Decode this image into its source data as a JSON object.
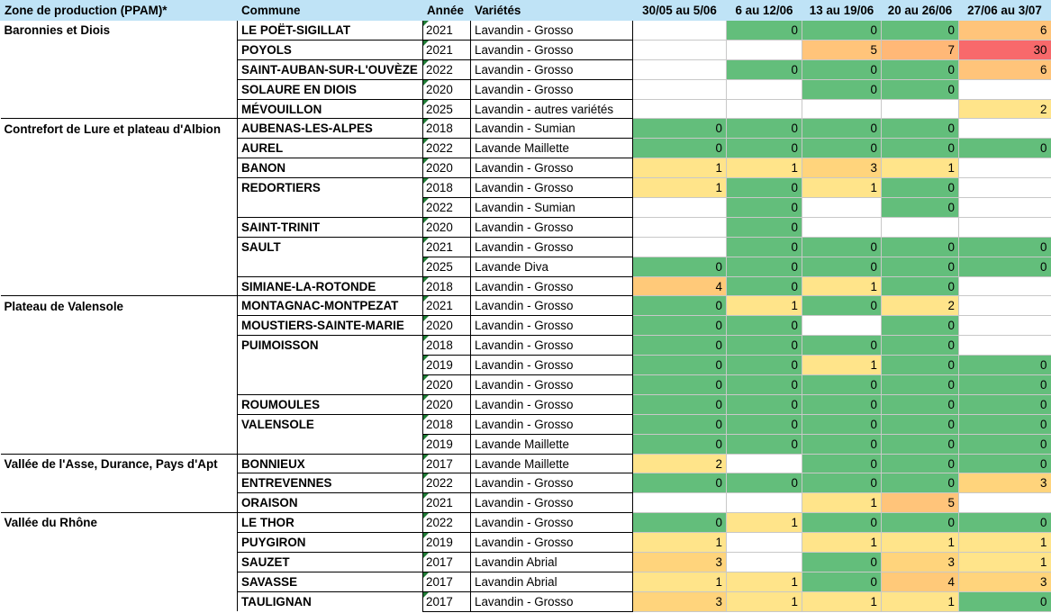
{
  "headers": {
    "zone": "Zone de production (PPAM)*",
    "commune": "Commune",
    "annee": "Année",
    "varietes": "Variétés",
    "weeks": [
      "30/05 au 5/06",
      "6 au 12/06",
      "13 au 19/06",
      "20 au 26/06",
      "27/06 au 3/07"
    ]
  },
  "colors": {
    "header_bg": "#bfe3f6",
    "green": "#63be7b",
    "yellow_low": "#ffe48a",
    "orange": "#ffb877",
    "red": "#f8696b",
    "corner_marker": "#1e7b34"
  },
  "rows": [
    {
      "zone": "Baronnies et Diois",
      "commune": "LE POËT-SIGILLAT",
      "annee": "2021",
      "variete": "Lavandin - Grosso",
      "weeks": [
        null,
        "0",
        "0",
        "0",
        "6"
      ]
    },
    {
      "zone": "",
      "commune": "POYOLS",
      "annee": "2021",
      "variete": "Lavandin - Grosso",
      "weeks": [
        null,
        null,
        "5",
        "7",
        "30"
      ]
    },
    {
      "zone": "",
      "commune": "SAINT-AUBAN-SUR-L'OUVÈZE",
      "annee": "2022",
      "variete": "Lavandin - Grosso",
      "weeks": [
        null,
        "0",
        "0",
        "0",
        "6"
      ]
    },
    {
      "zone": "",
      "commune": "SOLAURE EN DIOIS",
      "annee": "2020",
      "variete": "Lavandin - Grosso",
      "weeks": [
        null,
        null,
        "0",
        "0",
        null
      ]
    },
    {
      "zone": "",
      "commune": "MÉVOUILLON",
      "annee": "2025",
      "variete": "Lavandin - autres variétés",
      "weeks": [
        null,
        null,
        null,
        null,
        "2"
      ]
    },
    {
      "zone": "Contrefort de Lure et plateau d'Albion",
      "commune": "AUBENAS-LES-ALPES",
      "annee": "2018",
      "variete": "Lavandin - Sumian",
      "weeks": [
        "0",
        "0",
        "0",
        "0",
        null
      ]
    },
    {
      "zone": "",
      "commune": "AUREL",
      "annee": "2022",
      "variete": "Lavande Maillette",
      "weeks": [
        "0",
        "0",
        "0",
        "0",
        "0"
      ]
    },
    {
      "zone": "",
      "commune": "BANON",
      "annee": "2020",
      "variete": "Lavandin - Grosso",
      "weeks": [
        "1",
        "1",
        "3",
        "1",
        null
      ]
    },
    {
      "zone": "",
      "commune": "REDORTIERS",
      "annee": "2018",
      "variete": "Lavandin - Grosso",
      "weeks": [
        "1",
        "0",
        "1",
        "0",
        null
      ]
    },
    {
      "zone": "",
      "commune": "",
      "annee": "2022",
      "variete": "Lavandin - Sumian",
      "weeks": [
        null,
        "0",
        null,
        "0",
        null
      ]
    },
    {
      "zone": "",
      "commune": "SAINT-TRINIT",
      "annee": "2020",
      "variete": "Lavandin - Grosso",
      "weeks": [
        null,
        "0",
        null,
        null,
        null
      ]
    },
    {
      "zone": "",
      "commune": "SAULT",
      "annee": "2021",
      "variete": "Lavandin - Grosso",
      "weeks": [
        null,
        "0",
        "0",
        "0",
        "0"
      ]
    },
    {
      "zone": "",
      "commune": "",
      "annee": "2025",
      "variete": "Lavande Diva",
      "weeks": [
        "0",
        "0",
        "0",
        "0",
        "0"
      ]
    },
    {
      "zone": "",
      "commune": "SIMIANE-LA-ROTONDE",
      "annee": "2018",
      "variete": "Lavandin - Grosso",
      "weeks": [
        "4",
        "0",
        "1",
        "0",
        null
      ]
    },
    {
      "zone": "Plateau de Valensole",
      "commune": "MONTAGNAC-MONTPEZAT",
      "annee": "2021",
      "variete": "Lavandin - Grosso",
      "weeks": [
        "0",
        "1",
        "0",
        "2",
        null
      ]
    },
    {
      "zone": "",
      "commune": "MOUSTIERS-SAINTE-MARIE",
      "annee": "2020",
      "variete": "Lavandin - Grosso",
      "weeks": [
        "0",
        "0",
        null,
        "0",
        null
      ]
    },
    {
      "zone": "",
      "commune": "PUIMOISSON",
      "annee": "2018",
      "variete": "Lavandin - Grosso",
      "weeks": [
        "0",
        "0",
        "0",
        "0",
        null
      ]
    },
    {
      "zone": "",
      "commune": "",
      "annee": "2019",
      "variete": "Lavandin - Grosso",
      "weeks": [
        "0",
        "0",
        "1",
        "0",
        "0"
      ]
    },
    {
      "zone": "",
      "commune": "",
      "annee": "2020",
      "variete": "Lavandin - Grosso",
      "weeks": [
        "0",
        "0",
        "0",
        "0",
        "0"
      ]
    },
    {
      "zone": "",
      "commune": "ROUMOULES",
      "annee": "2020",
      "variete": "Lavandin - Grosso",
      "weeks": [
        "0",
        "0",
        "0",
        "0",
        "0"
      ]
    },
    {
      "zone": "",
      "commune": "VALENSOLE",
      "annee": "2018",
      "variete": "Lavandin - Grosso",
      "weeks": [
        "0",
        "0",
        "0",
        "0",
        "0"
      ]
    },
    {
      "zone": "",
      "commune": "",
      "annee": "2019",
      "variete": "Lavande Maillette",
      "weeks": [
        "0",
        "0",
        "0",
        "0",
        "0"
      ]
    },
    {
      "zone": "Vallée de l'Asse, Durance, Pays d'Apt",
      "commune": "BONNIEUX",
      "annee": "2017",
      "variete": "Lavande Maillette",
      "weeks": [
        "2",
        null,
        "0",
        "0",
        "0"
      ]
    },
    {
      "zone": "",
      "commune": "ENTREVENNES",
      "annee": "2022",
      "variete": "Lavandin - Grosso",
      "weeks": [
        "0",
        "0",
        "0",
        "0",
        "3"
      ]
    },
    {
      "zone": "",
      "commune": "ORAISON",
      "annee": "2021",
      "variete": "Lavandin - Grosso",
      "weeks": [
        null,
        null,
        "1",
        "5",
        null
      ]
    },
    {
      "zone": "Vallée du Rhône",
      "commune": "LE THOR",
      "annee": "2022",
      "variete": "Lavandin - Grosso",
      "weeks": [
        "0",
        "1",
        "0",
        "0",
        "0"
      ]
    },
    {
      "zone": "",
      "commune": "PUYGIRON",
      "annee": "2019",
      "variete": "Lavandin - Grosso",
      "weeks": [
        "1",
        null,
        "1",
        "1",
        "1"
      ]
    },
    {
      "zone": "",
      "commune": "SAUZET",
      "annee": "2017",
      "variete": "Lavandin Abrial",
      "weeks": [
        "3",
        null,
        "0",
        "3",
        "1"
      ]
    },
    {
      "zone": "",
      "commune": "SAVASSE",
      "annee": "2017",
      "variete": "Lavandin Abrial",
      "weeks": [
        "1",
        "1",
        "0",
        "4",
        "3"
      ]
    },
    {
      "zone": "",
      "commune": "TAULIGNAN",
      "annee": "2017",
      "variete": "Lavandin - Grosso",
      "weeks": [
        "3",
        "1",
        "1",
        "1",
        "0"
      ]
    }
  ]
}
